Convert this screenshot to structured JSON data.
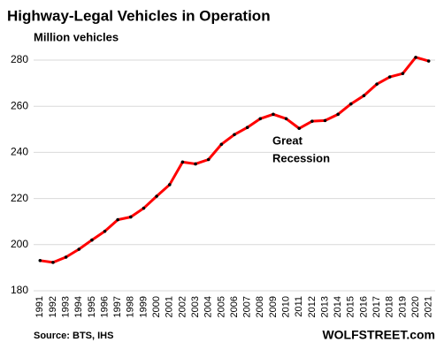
{
  "chart_data": {
    "type": "line",
    "title": "Highway-Legal Vehicles in Operation",
    "subtitle": "Million vehicles",
    "annotation": [
      "Great",
      "Recession"
    ],
    "source": "Source: BTS, IHS",
    "credit": "WOLFSTREET.com",
    "categories": [
      "1991",
      "1992",
      "1993",
      "1994",
      "1995",
      "1996",
      "1997",
      "1998",
      "1999",
      "2000",
      "2001",
      "2002",
      "2003",
      "2004",
      "2005",
      "2006",
      "2007",
      "2008",
      "2009",
      "2010",
      "2011",
      "2012",
      "2013",
      "2014",
      "2015",
      "2016",
      "2017",
      "2018",
      "2019",
      "2020",
      "2021"
    ],
    "series": [
      {
        "color": "#ff0000",
        "marker_color": "#000000",
        "values": [
          193.1,
          192.3,
          194.6,
          198,
          202,
          205.8,
          210.8,
          212,
          215.8,
          221,
          226,
          235.8,
          235,
          236.9,
          243.5,
          247.7,
          250.8,
          254.6,
          256.5,
          254.6,
          250.4,
          253.5,
          253.8,
          256.5,
          261,
          264.6,
          269.6,
          272.7,
          274.2,
          281.2,
          279.6
        ]
      }
    ],
    "ylim": [
      180,
      280
    ],
    "yticks": [
      180,
      200,
      220,
      240,
      260,
      280
    ],
    "grid": true
  }
}
